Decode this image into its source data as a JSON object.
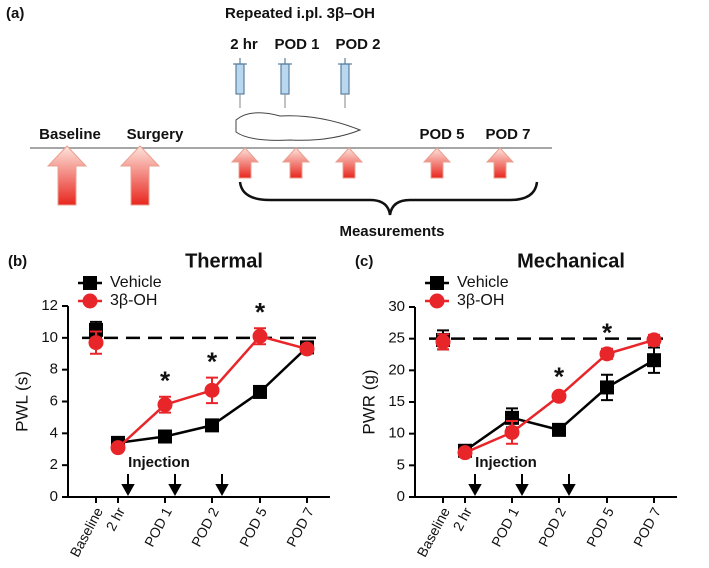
{
  "diagram": {
    "panel": "(a)",
    "heading": "Repeated i.pl. 3β–OH",
    "injection_times": [
      "2 hr",
      "POD 1",
      "POD 2"
    ],
    "stages": [
      "Baseline",
      "Surgery",
      "POD 5",
      "POD 7"
    ],
    "bracket_label": "Measurements"
  },
  "chart_data": [
    {
      "type": "line",
      "panel": "(b)",
      "title": "Thermal",
      "y_label": "PWL (s)",
      "categories": [
        "Baseline",
        "2 hr",
        "POD 1",
        "POD 2",
        "POD 5",
        "POD 7"
      ],
      "series": [
        {
          "name": "Vehicle",
          "color": "#000000",
          "marker": "square",
          "values": [
            10.5,
            3.4,
            3.8,
            4.5,
            6.6,
            9.4
          ],
          "errors": [
            0.5,
            0.2,
            0.2,
            0.2,
            0.2,
            0.2
          ]
        },
        {
          "name": "3β-OH",
          "color": "#e8262a",
          "marker": "circle",
          "values": [
            9.7,
            3.1,
            5.8,
            6.7,
            10.1,
            9.3
          ],
          "errors": [
            0.7,
            0.2,
            0.5,
            0.8,
            0.5,
            0.2
          ]
        }
      ],
      "ylim": [
        0,
        12
      ],
      "yticks": [
        0,
        2,
        4,
        6,
        8,
        10,
        12
      ],
      "reference_line": 10,
      "connect_baseline": false,
      "injection_label": "Injection",
      "annotations": [
        {
          "text": "*",
          "x": "POD 1"
        },
        {
          "text": "*",
          "x": "POD 2"
        },
        {
          "text": "*",
          "x": "POD 5"
        }
      ],
      "legend": "top-left"
    },
    {
      "type": "line",
      "panel": "(c)",
      "title": "Mechanical",
      "y_label": "PWR (g)",
      "categories": [
        "Baseline",
        "2 hr",
        "POD 1",
        "POD 2",
        "POD 5",
        "POD 7"
      ],
      "series": [
        {
          "name": "Vehicle",
          "color": "#000000",
          "marker": "square",
          "values": [
            24.8,
            7.3,
            12.5,
            10.6,
            17.3,
            21.6
          ],
          "errors": [
            1.5,
            0.5,
            1.5,
            0.8,
            2,
            2
          ]
        },
        {
          "name": "3β-OH",
          "color": "#e8262a",
          "marker": "circle",
          "values": [
            24.5,
            7.0,
            10.2,
            15.9,
            22.6,
            24.8
          ],
          "errors": [
            1.2,
            0.5,
            1.8,
            0.6,
            0.8,
            0.8
          ]
        }
      ],
      "ylim": [
        0,
        30
      ],
      "yticks": [
        0,
        5,
        10,
        15,
        20,
        25,
        30
      ],
      "reference_line": 25,
      "connect_baseline": false,
      "injection_label": "Injection",
      "annotations": [
        {
          "text": "*",
          "x": "POD 2"
        },
        {
          "text": "*",
          "x": "POD 5"
        }
      ],
      "legend": "top-left"
    }
  ]
}
